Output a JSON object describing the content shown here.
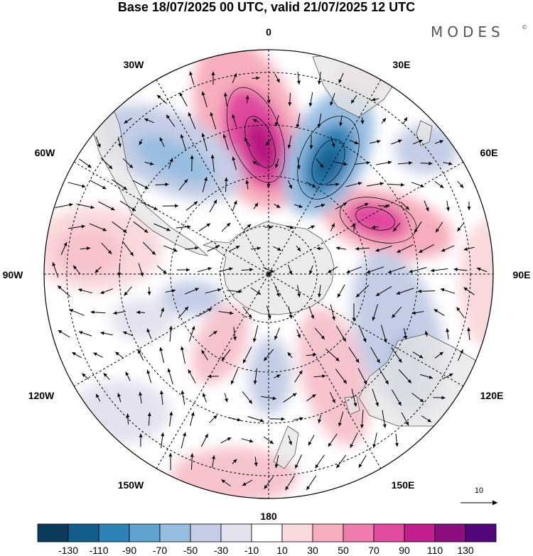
{
  "header": {
    "title": "Base 18/07/2025 00 UTC, valid 21/07/2025 12 UTC",
    "brand": "MODES",
    "brand_mark": "©"
  },
  "map": {
    "projection": "south-polar-stereographic",
    "longitude_labels": {
      "lon_0": "0",
      "lon_30e": "30E",
      "lon_60e": "60E",
      "lon_90e": "90E",
      "lon_120e": "120E",
      "lon_150e": "150E",
      "lon_180": "180",
      "lon_150w": "150W",
      "lon_120w": "120W",
      "lon_90w": "90W",
      "lon_60w": "60W",
      "lon_30w": "30W"
    },
    "reference_vector": {
      "label": "10"
    },
    "anomaly_centers": [
      {
        "id": "neg-30e-60s",
        "value": -100,
        "color": "#1f6e9e"
      },
      {
        "id": "pos-10w-55s",
        "value": 95,
        "color": "#b5177f"
      },
      {
        "id": "pos-65e-55s",
        "value": 80,
        "color": "#d83c9c"
      }
    ]
  },
  "colorbar": {
    "labels": [
      "-130",
      "-110",
      "-90",
      "-70",
      "-50",
      "-30",
      "-10",
      "10",
      "30",
      "50",
      "70",
      "90",
      "110",
      "130"
    ],
    "colors": [
      "#0b3b5b",
      "#125e8c",
      "#2e82b7",
      "#5fa4cf",
      "#97bde0",
      "#c4cde5",
      "#e3e2ef",
      "#ffffff",
      "#f9d9dc",
      "#f7adbb",
      "#f07bad",
      "#e04a9f",
      "#c11f8d",
      "#8d0f7f",
      "#52077a"
    ]
  }
}
